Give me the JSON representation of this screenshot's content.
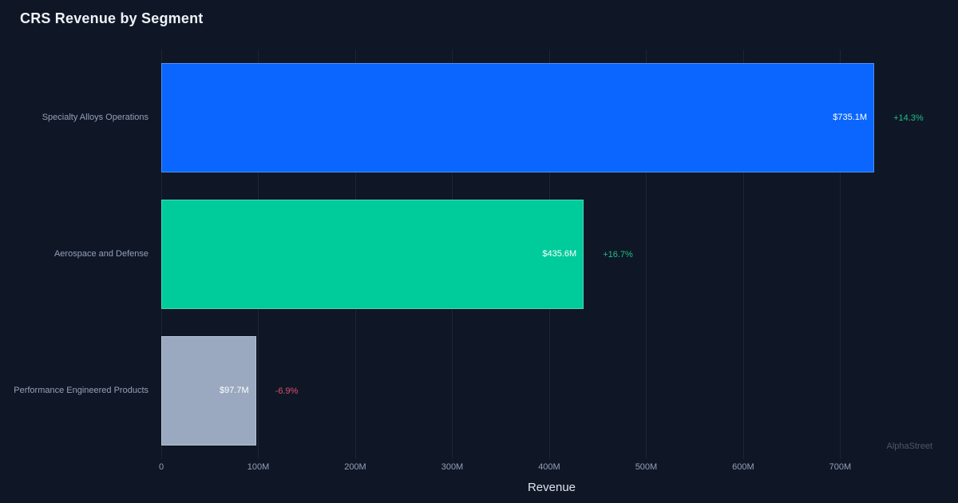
{
  "watermark": "AlphaStreet",
  "chart_data": {
    "type": "bar",
    "orientation": "horizontal",
    "title": "CRS Revenue by Segment",
    "xlabel": "Revenue",
    "categories": [
      "Specialty Alloys Operations",
      "Aerospace and Defense",
      "Performance Engineered Products"
    ],
    "series": [
      {
        "name": "Revenue ($M)",
        "values": [
          735.1,
          435.6,
          97.7
        ]
      }
    ],
    "value_labels": [
      "$735.1M",
      "$435.6M",
      "$97.7M"
    ],
    "change_labels": [
      "+14.3%",
      "+16.7%",
      "-6.9%"
    ],
    "change_directions": [
      "up",
      "up",
      "down"
    ],
    "bar_colors": [
      "#0a66ff",
      "#00cb9b",
      "#9aa9bf"
    ],
    "x_tick_values": [
      0,
      100,
      200,
      300,
      400,
      500,
      600,
      700
    ],
    "x_tick_labels": [
      "0",
      "100M",
      "200M",
      "300M",
      "400M",
      "500M",
      "600M",
      "700M"
    ],
    "x_max": 805,
    "grid": true,
    "legend": false,
    "colors": {
      "background": "#0f1727",
      "positive": "#1fbf86",
      "negative": "#e0506a",
      "text_muted": "#93a0b4",
      "grid": "#232d42"
    }
  }
}
